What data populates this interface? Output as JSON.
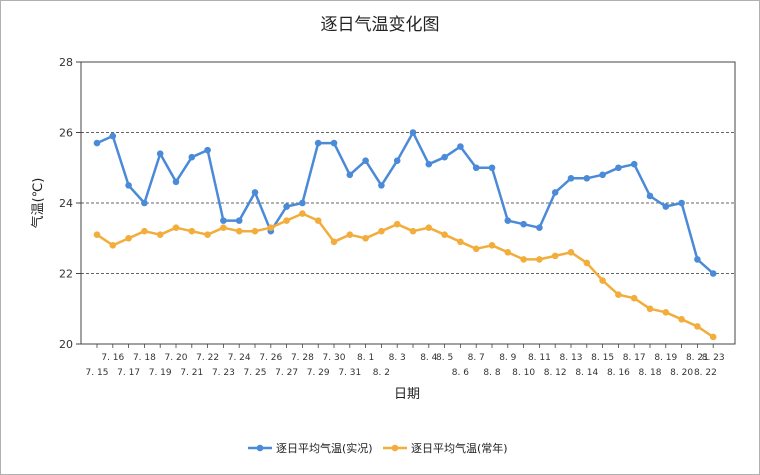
{
  "chart_data": {
    "type": "line",
    "title": "逐日气温变化图",
    "xlabel": "日期",
    "ylabel": "气温(℃)",
    "ylim": [
      20,
      28
    ],
    "yticks": [
      20,
      22,
      24,
      26,
      28
    ],
    "grid": "horizontal-dashed",
    "legend_position": "bottom",
    "categories": [
      "7.15",
      "7.16",
      "7.17",
      "7.18",
      "7.19",
      "7.20",
      "7.21",
      "7.22",
      "7.23",
      "7.24",
      "7.25",
      "7.26",
      "7.27",
      "7.28",
      "7.29",
      "7.30",
      "7.31",
      "8.1",
      "8.2",
      "8.3",
      "8.4",
      "8.5",
      "8.6",
      "8.7",
      "8.8",
      "8.9",
      "8.10",
      "8.11",
      "8.12",
      "8.13",
      "8.14",
      "8.15",
      "8.16",
      "8.17",
      "8.18",
      "8.19",
      "8.20",
      "8.21",
      "8.22",
      "8.23"
    ],
    "tick_labels_upper": [
      "7. 16",
      "7. 18",
      "7. 20",
      "7. 22",
      "7. 24",
      "7. 26",
      "7. 28",
      "7. 30",
      "8. 1",
      "8. 3",
      "8. 4",
      "8. 5",
      "8. 7",
      "8. 9",
      "8. 11",
      "8. 13",
      "8. 15",
      "8. 17",
      "8. 19",
      "8. 21",
      "8. 23"
    ],
    "tick_labels_lower": [
      "7. 15",
      "7. 17",
      "7. 19",
      "7. 21",
      "7. 23",
      "7. 25",
      "7. 27",
      "7. 29",
      "7. 31",
      "8. 2",
      "8. 6",
      "8. 8",
      "8. 10",
      "8. 12",
      "8. 14",
      "8. 16",
      "8. 18",
      "8. 20",
      "8. 22"
    ],
    "series": [
      {
        "name": "逐日平均气温(实况)",
        "color": "#4a8ad8",
        "values": [
          25.7,
          25.9,
          24.5,
          24.0,
          25.4,
          24.6,
          25.3,
          25.5,
          23.5,
          23.5,
          24.3,
          23.2,
          23.9,
          24.0,
          25.7,
          25.7,
          24.8,
          25.2,
          24.5,
          25.2,
          26.0,
          25.1,
          25.3,
          25.6,
          25.0,
          25.0,
          23.5,
          23.4,
          23.3,
          24.3,
          24.7,
          24.7,
          24.8,
          25.0,
          25.1,
          24.2,
          23.9,
          24.0,
          22.4,
          22.0
        ]
      },
      {
        "name": "逐日平均气温(常年)",
        "color": "#f2ad3c",
        "values": [
          23.1,
          22.8,
          23.0,
          23.2,
          23.1,
          23.3,
          23.2,
          23.1,
          23.3,
          23.2,
          23.2,
          23.3,
          23.5,
          23.7,
          23.5,
          22.9,
          23.1,
          23.0,
          23.2,
          23.4,
          23.2,
          23.3,
          23.1,
          22.9,
          22.7,
          22.8,
          22.6,
          22.4,
          22.4,
          22.5,
          22.6,
          22.3,
          21.8,
          21.4,
          21.3,
          21.0,
          20.9,
          20.7,
          20.5,
          20.2
        ]
      }
    ]
  }
}
